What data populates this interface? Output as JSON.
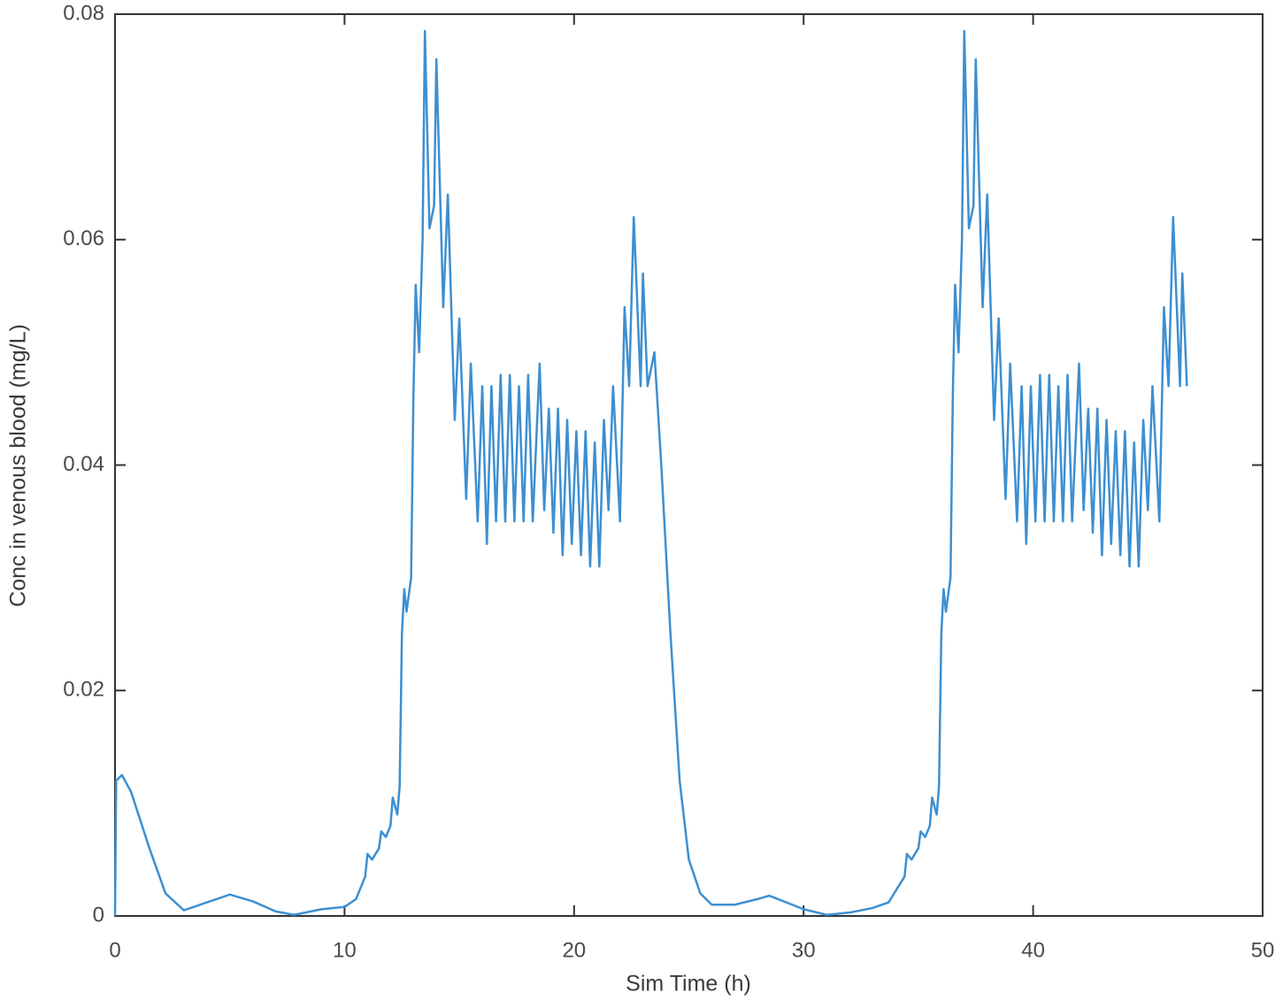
{
  "chart_data": {
    "type": "line",
    "xlabel": "Sim Time (h)",
    "ylabel": "Conc in venous blood (mg/L)",
    "color": "#3d8fd1",
    "xlim": [
      0,
      50
    ],
    "xticks": [
      0,
      10,
      20,
      30,
      40,
      50
    ],
    "ylim": [
      0,
      0.08
    ],
    "yticks": [
      0,
      0.02,
      0.04,
      0.06,
      0.08
    ],
    "x": [
      0,
      0.05,
      0.3,
      0.7,
      1.5,
      2.2,
      3,
      4,
      5,
      6,
      7,
      7.8,
      9,
      10,
      10.5,
      10.9,
      11,
      11.2,
      11.5,
      11.6,
      11.8,
      12,
      12.1,
      12.3,
      12.4,
      12.5,
      12.6,
      12.7,
      12.9,
      13.0,
      13.1,
      13.25,
      13.4,
      13.5,
      13.7,
      13.9,
      14.0,
      14.3,
      14.5,
      14.8,
      15.0,
      15.3,
      15.5,
      15.8,
      16.0,
      16.2,
      16.4,
      16.6,
      16.8,
      17.0,
      17.2,
      17.4,
      17.6,
      17.8,
      18.0,
      18.2,
      18.5,
      18.7,
      18.9,
      19.1,
      19.3,
      19.5,
      19.7,
      19.9,
      20.1,
      20.3,
      20.5,
      20.7,
      20.9,
      21.1,
      21.3,
      21.5,
      21.7,
      22.0,
      22.2,
      22.4,
      22.6,
      22.9,
      23.0,
      23.2,
      23.5,
      23.8,
      24.2,
      24.6,
      25,
      25.5,
      26,
      27,
      28,
      28.5,
      29,
      30,
      31,
      32,
      33,
      33.7,
      34.4,
      34.5,
      34.7,
      35,
      35.1,
      35.3,
      35.5,
      35.6,
      35.8,
      35.9,
      36,
      36.1,
      36.2,
      36.4,
      36.5,
      36.6,
      36.75,
      36.9,
      37,
      37.2,
      37.4,
      37.5,
      37.8,
      38,
      38.3,
      38.5,
      38.8,
      39,
      39.3,
      39.5,
      39.7,
      39.9,
      40.1,
      40.3,
      40.5,
      40.7,
      40.9,
      41.1,
      41.3,
      41.5,
      41.7,
      42,
      42.2,
      42.4,
      42.6,
      42.8,
      43,
      43.2,
      43.4,
      43.6,
      43.8,
      44,
      44.2,
      44.4,
      44.6,
      44.8,
      45,
      45.2,
      45.5,
      45.7,
      45.9,
      46.1,
      46.4,
      46.5,
      46.7
    ],
    "values": [
      0,
      0.012,
      0.0125,
      0.011,
      0.006,
      0.002,
      0.0005,
      0.0012,
      0.0019,
      0.0013,
      0.0004,
      0.0001,
      0.0006,
      0.0008,
      0.0015,
      0.0035,
      0.0055,
      0.005,
      0.006,
      0.0075,
      0.007,
      0.008,
      0.0105,
      0.009,
      0.0115,
      0.025,
      0.029,
      0.027,
      0.03,
      0.046,
      0.056,
      0.05,
      0.06,
      0.0785,
      0.061,
      0.063,
      0.076,
      0.054,
      0.064,
      0.044,
      0.053,
      0.037,
      0.049,
      0.035,
      0.047,
      0.033,
      0.047,
      0.035,
      0.048,
      0.035,
      0.048,
      0.035,
      0.047,
      0.035,
      0.048,
      0.035,
      0.049,
      0.036,
      0.045,
      0.034,
      0.045,
      0.032,
      0.044,
      0.033,
      0.043,
      0.032,
      0.043,
      0.031,
      0.042,
      0.031,
      0.044,
      0.036,
      0.047,
      0.035,
      0.054,
      0.047,
      0.062,
      0.047,
      0.057,
      0.047,
      0.05,
      0.04,
      0.025,
      0.012,
      0.005,
      0.002,
      0.001,
      0.001,
      0.0015,
      0.0018,
      0.0014,
      0.0006,
      0.0001,
      0.0003,
      0.0007,
      0.0012,
      0.0035,
      0.0055,
      0.005,
      0.006,
      0.0075,
      0.007,
      0.008,
      0.0105,
      0.009,
      0.0115,
      0.025,
      0.029,
      0.027,
      0.03,
      0.046,
      0.056,
      0.05,
      0.06,
      0.0785,
      0.061,
      0.063,
      0.076,
      0.054,
      0.064,
      0.044,
      0.053,
      0.037,
      0.049,
      0.035,
      0.047,
      0.033,
      0.047,
      0.035,
      0.048,
      0.035,
      0.048,
      0.035,
      0.047,
      0.035,
      0.048,
      0.035,
      0.049,
      0.036,
      0.045,
      0.034,
      0.045,
      0.032,
      0.044,
      0.033,
      0.043,
      0.032,
      0.043,
      0.031,
      0.042,
      0.031,
      0.044,
      0.036,
      0.047,
      0.035,
      0.054,
      0.047,
      0.062,
      0.047,
      0.057,
      0.047
    ]
  }
}
